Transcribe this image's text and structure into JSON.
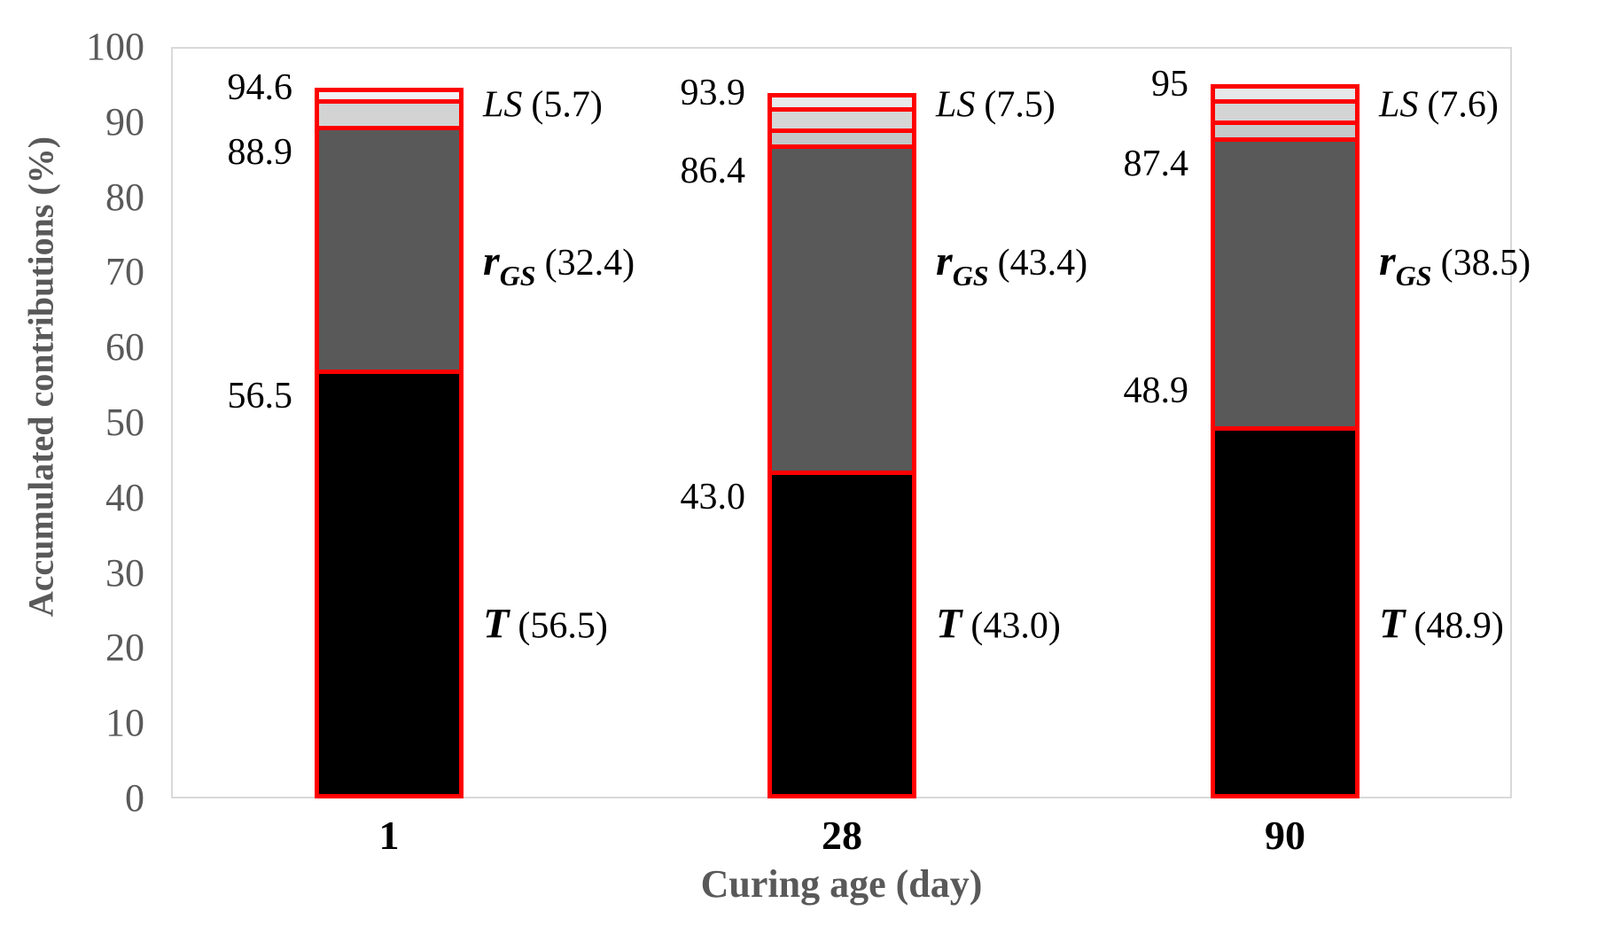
{
  "chart_data": {
    "type": "stacked-bar",
    "title": "",
    "xlabel": "Curing age (day)",
    "ylabel": "Accumulated contributions (%)",
    "ylim": [
      0,
      100
    ],
    "y_ticks": [
      0,
      10,
      20,
      30,
      40,
      50,
      60,
      70,
      80,
      90,
      100
    ],
    "grid": false,
    "legend_position": "none",
    "categories": [
      "1",
      "28",
      "90"
    ],
    "series": [
      {
        "name": "T",
        "values": [
          56.5,
          43.0,
          48.9
        ],
        "color": "#000000"
      },
      {
        "name": "r_GS",
        "values": [
          32.4,
          43.4,
          38.5
        ],
        "color": "#595959"
      },
      {
        "name": "LS",
        "values": [
          5.7,
          7.5,
          7.6
        ],
        "color": "#d9d9d9"
      }
    ],
    "bar_outline_color": "#ff0000",
    "bars": [
      {
        "category": "1",
        "segments": [
          {
            "series": "T",
            "from": 0,
            "to": 56.5,
            "fill": "#000000"
          },
          {
            "series": "rGS",
            "from": 56.5,
            "to": 88.9,
            "fill": "#595959"
          },
          {
            "series": "LS",
            "from": 88.9,
            "to": 92.5,
            "fill": "#d3d3d3"
          },
          {
            "series": "LS",
            "from": 92.5,
            "to": 94.6,
            "fill": "#f1f2f4"
          }
        ],
        "cumulative_labels": [
          {
            "text": "94.6",
            "value": 94.6,
            "placement": "above-top"
          },
          {
            "text": "88.9",
            "value": 88.9,
            "placement": "below-line"
          },
          {
            "text": "56.5",
            "value": 56.5,
            "placement": "below-line"
          }
        ],
        "annotations": [
          {
            "series": "LS",
            "name": "LS",
            "value_text": "(5.7)"
          },
          {
            "series": "rGS",
            "name": "r",
            "sub": "GS",
            "value_text": "(32.4)"
          },
          {
            "series": "T",
            "name": "T",
            "value_text": "(56.5)"
          }
        ]
      },
      {
        "category": "28",
        "segments": [
          {
            "series": "T",
            "from": 0,
            "to": 43.0,
            "fill": "#000000"
          },
          {
            "series": "rGS",
            "from": 43.0,
            "to": 86.4,
            "fill": "#595959"
          },
          {
            "series": "LS",
            "from": 86.4,
            "to": 88.6,
            "fill": "#c3c7c7"
          },
          {
            "series": "LS",
            "from": 88.6,
            "to": 91.4,
            "fill": "#d6d6d6"
          },
          {
            "series": "LS",
            "from": 91.4,
            "to": 93.9,
            "fill": "#e7e9eb"
          }
        ],
        "cumulative_labels": [
          {
            "text": "93.9",
            "value": 93.9,
            "placement": "above-top"
          },
          {
            "text": "86.4",
            "value": 86.4,
            "placement": "below-line"
          },
          {
            "text": "43.0",
            "value": 43.0,
            "placement": "below-line"
          }
        ],
        "annotations": [
          {
            "series": "LS",
            "name": "LS",
            "value_text": "(7.5)"
          },
          {
            "series": "rGS",
            "name": "r",
            "sub": "GS",
            "value_text": "(43.4)"
          },
          {
            "series": "T",
            "name": "T",
            "value_text": "(43.0)"
          }
        ]
      },
      {
        "category": "90",
        "segments": [
          {
            "series": "T",
            "from": 0,
            "to": 48.9,
            "fill": "#000000"
          },
          {
            "series": "rGS",
            "from": 48.9,
            "to": 87.4,
            "fill": "#595959"
          },
          {
            "series": "LS",
            "from": 87.4,
            "to": 89.6,
            "fill": "#c6c9c9"
          },
          {
            "series": "LS",
            "from": 89.6,
            "to": 92.4,
            "fill": "#d4d4d4"
          },
          {
            "series": "LS",
            "from": 92.4,
            "to": 95.0,
            "fill": "#e5e7e9"
          }
        ],
        "cumulative_labels": [
          {
            "text": "95",
            "value": 95.0,
            "placement": "above-top"
          },
          {
            "text": "87.4",
            "value": 87.4,
            "placement": "below-line"
          },
          {
            "text": "48.9",
            "value": 48.9,
            "placement": "above-line"
          }
        ],
        "annotations": [
          {
            "series": "LS",
            "name": "LS",
            "value_text": "(7.6)"
          },
          {
            "series": "rGS",
            "name": "r",
            "sub": "GS",
            "value_text": "(38.5)"
          },
          {
            "series": "T",
            "name": "T",
            "value_text": "(48.9)"
          }
        ]
      }
    ],
    "colors": {
      "bar_outline": "#ff0000",
      "t_fill": "#000000",
      "rgs_fill": "#595959",
      "axis_line": "#d9d9d9",
      "axis_text": "#595959",
      "x_tick_text": "#000000",
      "data_label_text": "#000000"
    }
  }
}
